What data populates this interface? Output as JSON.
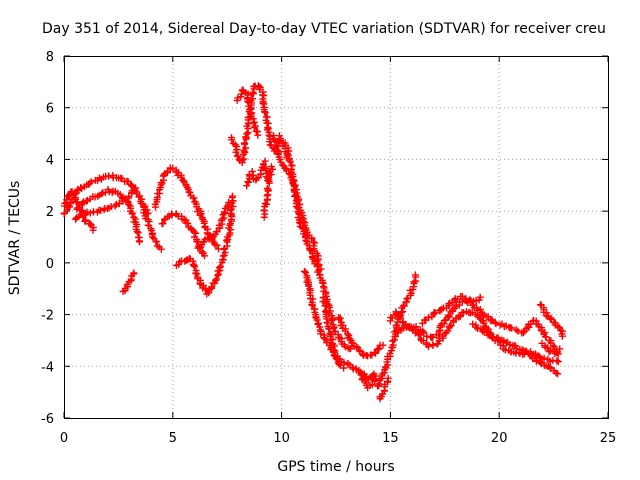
{
  "chart_data": {
    "type": "scatter",
    "title": "Day 351 of 2014, Sidereal Day-to-day VTEC variation (SDTVAR) for receiver creu",
    "xlabel": "GPS time / hours",
    "ylabel": "SDTVAR / TECUs",
    "xlim": [
      0,
      25
    ],
    "ylim": [
      -6,
      8
    ],
    "xticks": [
      "0",
      "5",
      "10",
      "15",
      "20",
      "25"
    ],
    "yticks": [
      "-6",
      "-4",
      "-2",
      "0",
      "2",
      "4",
      "6",
      "8"
    ],
    "grid": true,
    "marker": "+",
    "series": [
      {
        "name": "SDTVAR",
        "color": "#ff0000",
        "segments": [
          [
            [
              0.0,
              2.2
            ],
            [
              0.2,
              2.6
            ],
            [
              0.4,
              2.8
            ],
            [
              0.6,
              2.4
            ],
            [
              0.8,
              2.0
            ],
            [
              1.0,
              1.6
            ],
            [
              1.2,
              1.5
            ],
            [
              1.4,
              1.2
            ]
          ],
          [
            [
              0.0,
              1.9
            ],
            [
              0.3,
              2.3
            ],
            [
              0.6,
              2.8
            ],
            [
              1.0,
              3.0
            ],
            [
              1.5,
              3.2
            ],
            [
              2.0,
              3.4
            ],
            [
              2.5,
              3.3
            ],
            [
              3.0,
              3.1
            ],
            [
              3.3,
              2.8
            ],
            [
              3.6,
              2.3
            ],
            [
              3.9,
              1.8
            ]
          ],
          [
            [
              0.6,
              2.1
            ],
            [
              1.0,
              2.4
            ],
            [
              1.5,
              2.6
            ],
            [
              2.0,
              2.8
            ],
            [
              2.5,
              2.7
            ],
            [
              2.9,
              2.4
            ],
            [
              3.2,
              1.8
            ],
            [
              3.4,
              1.2
            ],
            [
              3.5,
              0.7
            ]
          ],
          [
            [
              0.5,
              1.7
            ],
            [
              1.0,
              1.9
            ],
            [
              1.5,
              2.0
            ],
            [
              2.0,
              2.1
            ],
            [
              2.5,
              2.3
            ],
            [
              3.0,
              2.6
            ],
            [
              3.3,
              2.9
            ]
          ],
          [
            [
              3.6,
              2.2
            ],
            [
              3.9,
              1.5
            ],
            [
              4.1,
              1.0
            ],
            [
              4.3,
              0.7
            ],
            [
              4.5,
              0.5
            ]
          ],
          [
            [
              2.7,
              -1.1
            ],
            [
              2.9,
              -0.9
            ],
            [
              3.1,
              -0.6
            ],
            [
              3.3,
              -0.3
            ]
          ],
          [
            [
              4.2,
              2.2
            ],
            [
              4.4,
              2.9
            ],
            [
              4.6,
              3.4
            ],
            [
              4.9,
              3.7
            ],
            [
              5.1,
              3.6
            ],
            [
              5.4,
              3.3
            ],
            [
              5.7,
              2.9
            ],
            [
              6.0,
              2.4
            ],
            [
              6.3,
              1.8
            ],
            [
              6.6,
              1.2
            ],
            [
              6.9,
              0.8
            ],
            [
              7.1,
              0.5
            ]
          ],
          [
            [
              4.5,
              1.5
            ],
            [
              4.8,
              1.8
            ],
            [
              5.1,
              1.9
            ],
            [
              5.4,
              1.8
            ],
            [
              5.7,
              1.5
            ],
            [
              6.0,
              1.1
            ],
            [
              6.2,
              0.6
            ],
            [
              6.4,
              0.3
            ],
            [
              6.5,
              0.4
            ]
          ],
          [
            [
              5.2,
              -0.1
            ],
            [
              5.5,
              0.1
            ],
            [
              5.8,
              0.2
            ],
            [
              6.0,
              -0.1
            ],
            [
              6.2,
              -0.6
            ],
            [
              6.4,
              -1.0
            ],
            [
              6.6,
              -1.2
            ],
            [
              6.8,
              -0.9
            ],
            [
              7.0,
              -0.6
            ],
            [
              7.2,
              -0.1
            ],
            [
              7.4,
              0.5
            ],
            [
              7.6,
              1.2
            ],
            [
              7.7,
              2.1
            ],
            [
              7.8,
              2.7
            ]
          ],
          [
            [
              6.2,
              0.6
            ],
            [
              6.5,
              0.9
            ],
            [
              6.8,
              1.0
            ],
            [
              7.1,
              1.3
            ],
            [
              7.4,
              1.9
            ],
            [
              7.6,
              2.4
            ]
          ],
          [
            [
              7.7,
              4.8
            ],
            [
              7.9,
              4.5
            ],
            [
              8.0,
              4.0
            ],
            [
              8.2,
              3.9
            ],
            [
              8.3,
              4.4
            ],
            [
              8.5,
              5.6
            ],
            [
              8.7,
              6.8
            ],
            [
              8.9,
              6.9
            ],
            [
              9.1,
              6.6
            ],
            [
              9.3,
              5.6
            ],
            [
              9.5,
              4.6
            ],
            [
              9.7,
              4.3
            ],
            [
              9.9,
              4.9
            ],
            [
              10.1,
              4.5
            ],
            [
              10.3,
              4.0
            ]
          ],
          [
            [
              8.0,
              6.3
            ],
            [
              8.2,
              6.7
            ],
            [
              8.4,
              6.5
            ],
            [
              8.6,
              5.8
            ],
            [
              8.8,
              5.2
            ],
            [
              9.0,
              4.9
            ]
          ],
          [
            [
              8.4,
              3.0
            ],
            [
              8.6,
              3.5
            ],
            [
              8.8,
              3.2
            ],
            [
              9.0,
              3.4
            ],
            [
              9.2,
              3.9
            ],
            [
              9.4,
              3.1
            ],
            [
              9.6,
              3.8
            ]
          ],
          [
            [
              9.2,
              1.8
            ],
            [
              9.3,
              2.4
            ],
            [
              9.4,
              3.0
            ]
          ],
          [
            [
              9.6,
              4.9
            ],
            [
              9.8,
              4.4
            ],
            [
              10.0,
              3.9
            ],
            [
              10.2,
              3.6
            ],
            [
              10.4,
              3.4
            ],
            [
              10.6,
              3.0
            ],
            [
              10.8,
              2.3
            ],
            [
              11.0,
              1.6
            ],
            [
              11.2,
              1.1
            ],
            [
              11.4,
              1.0
            ],
            [
              11.6,
              0.4
            ],
            [
              11.8,
              -0.3
            ]
          ],
          [
            [
              10.2,
              4.6
            ],
            [
              10.4,
              3.9
            ],
            [
              10.6,
              2.7
            ],
            [
              10.8,
              1.7
            ],
            [
              11.0,
              1.2
            ],
            [
              11.3,
              0.6
            ],
            [
              11.6,
              -0.1
            ],
            [
              11.9,
              -0.8
            ],
            [
              12.1,
              -1.5
            ],
            [
              12.3,
              -2.1
            ],
            [
              12.5,
              -2.7
            ],
            [
              12.8,
              -3.1
            ],
            [
              13.1,
              -3.3
            ],
            [
              13.3,
              -3.4
            ]
          ],
          [
            [
              11.1,
              -0.3
            ],
            [
              11.3,
              -1.1
            ],
            [
              11.5,
              -1.9
            ],
            [
              11.7,
              -2.5
            ],
            [
              11.9,
              -2.8
            ],
            [
              12.1,
              -3.1
            ],
            [
              12.4,
              -3.5
            ],
            [
              12.7,
              -3.8
            ],
            [
              13.0,
              -3.9
            ],
            [
              13.4,
              -4.1
            ],
            [
              13.8,
              -4.3
            ],
            [
              14.0,
              -4.5
            ],
            [
              14.3,
              -4.2
            ]
          ],
          [
            [
              11.9,
              -1.3
            ],
            [
              12.1,
              -2.2
            ],
            [
              12.3,
              -3.0
            ],
            [
              12.5,
              -3.7
            ],
            [
              12.7,
              -4.0
            ],
            [
              12.9,
              -4.1
            ]
          ],
          [
            [
              12.6,
              -2.1
            ],
            [
              12.9,
              -2.6
            ],
            [
              13.2,
              -3.0
            ],
            [
              13.5,
              -3.3
            ],
            [
              13.8,
              -3.6
            ],
            [
              14.1,
              -3.6
            ],
            [
              14.4,
              -3.4
            ],
            [
              14.7,
              -3.1
            ]
          ],
          [
            [
              13.6,
              -4.3
            ],
            [
              13.8,
              -4.6
            ],
            [
              14.0,
              -4.8
            ],
            [
              14.2,
              -4.7
            ],
            [
              14.4,
              -4.3
            ]
          ],
          [
            [
              14.4,
              -4.8
            ],
            [
              14.6,
              -4.4
            ],
            [
              14.8,
              -4.0
            ],
            [
              15.0,
              -3.4
            ],
            [
              15.2,
              -2.8
            ],
            [
              15.4,
              -2.1
            ],
            [
              15.6,
              -1.7
            ],
            [
              15.8,
              -1.4
            ],
            [
              16.0,
              -1.0
            ],
            [
              16.2,
              -0.4
            ]
          ],
          [
            [
              14.5,
              -5.3
            ],
            [
              14.7,
              -5.0
            ],
            [
              14.9,
              -4.4
            ]
          ],
          [
            [
              15.0,
              -2.2
            ],
            [
              15.3,
              -1.9
            ],
            [
              15.6,
              -2.3
            ],
            [
              15.9,
              -2.5
            ],
            [
              16.2,
              -2.5
            ],
            [
              16.5,
              -2.7
            ],
            [
              16.8,
              -2.9
            ],
            [
              17.1,
              -2.8
            ],
            [
              17.4,
              -2.4
            ],
            [
              17.7,
              -2.0
            ],
            [
              18.0,
              -1.7
            ],
            [
              18.3,
              -1.5
            ],
            [
              18.6,
              -1.5
            ],
            [
              18.9,
              -1.7
            ],
            [
              19.2,
              -1.9
            ],
            [
              19.5,
              -2.1
            ],
            [
              19.8,
              -2.3
            ],
            [
              20.1,
              -2.4
            ],
            [
              20.4,
              -2.5
            ],
            [
              20.7,
              -2.5
            ]
          ],
          [
            [
              15.2,
              -2.7
            ],
            [
              15.6,
              -2.5
            ],
            [
              16.0,
              -2.5
            ],
            [
              16.4,
              -2.9
            ],
            [
              16.8,
              -3.2
            ],
            [
              17.2,
              -3.1
            ],
            [
              17.6,
              -2.6
            ],
            [
              18.0,
              -2.2
            ],
            [
              18.4,
              -1.9
            ],
            [
              18.8,
              -1.9
            ],
            [
              19.2,
              -2.2
            ],
            [
              19.6,
              -2.7
            ],
            [
              20.0,
              -3.0
            ],
            [
              20.4,
              -3.1
            ],
            [
              20.8,
              -3.3
            ],
            [
              21.2,
              -3.4
            ],
            [
              21.6,
              -3.5
            ],
            [
              22.0,
              -3.7
            ],
            [
              22.4,
              -3.8
            ],
            [
              22.8,
              -3.8
            ]
          ],
          [
            [
              16.5,
              -2.3
            ],
            [
              16.8,
              -2.1
            ],
            [
              17.1,
              -1.9
            ],
            [
              17.4,
              -1.8
            ],
            [
              17.7,
              -1.6
            ],
            [
              18.0,
              -1.4
            ],
            [
              18.3,
              -1.3
            ],
            [
              18.6,
              -1.4
            ],
            [
              18.9,
              -1.5
            ],
            [
              19.2,
              -1.3
            ]
          ],
          [
            [
              18.8,
              -2.4
            ],
            [
              19.2,
              -2.6
            ],
            [
              19.6,
              -2.8
            ],
            [
              20.0,
              -3.1
            ],
            [
              20.4,
              -3.4
            ],
            [
              20.8,
              -3.5
            ],
            [
              21.2,
              -3.5
            ],
            [
              21.6,
              -3.7
            ],
            [
              22.0,
              -3.9
            ],
            [
              22.4,
              -4.1
            ],
            [
              22.8,
              -4.3
            ]
          ],
          [
            [
              20.8,
              -2.6
            ],
            [
              21.1,
              -2.7
            ],
            [
              21.4,
              -2.4
            ],
            [
              21.6,
              -2.2
            ],
            [
              21.9,
              -2.5
            ],
            [
              22.2,
              -2.9
            ],
            [
              22.4,
              -3.1
            ],
            [
              22.6,
              -3.4
            ],
            [
              22.8,
              -3.6
            ]
          ],
          [
            [
              21.9,
              -1.6
            ],
            [
              22.2,
              -2.0
            ],
            [
              22.5,
              -2.3
            ],
            [
              22.8,
              -2.6
            ],
            [
              23.0,
              -2.9
            ]
          ],
          [
            [
              22.0,
              -3.1
            ],
            [
              22.3,
              -3.4
            ],
            [
              22.6,
              -3.5
            ],
            [
              22.8,
              -3.3
            ]
          ]
        ]
      }
    ]
  }
}
